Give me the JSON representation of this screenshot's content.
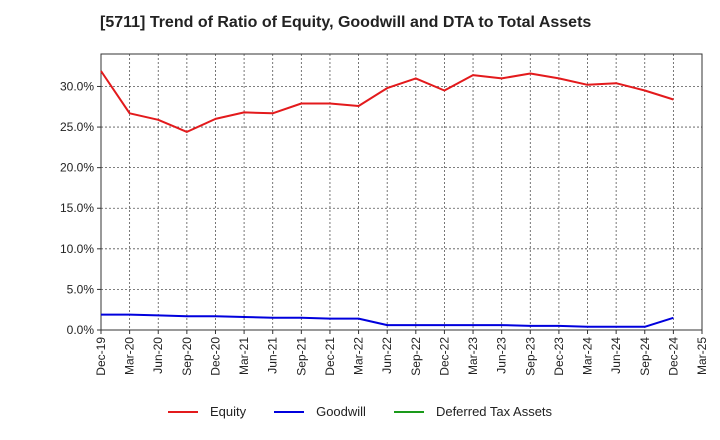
{
  "chart_data": {
    "type": "line",
    "title": "[5711]  Trend of Ratio of Equity, Goodwill and DTA to Total Assets",
    "xlabel": "",
    "ylabel": "",
    "x_ticks": [
      "Dec-19",
      "Mar-20",
      "Jun-20",
      "Sep-20",
      "Dec-20",
      "Mar-21",
      "Jun-21",
      "Sep-21",
      "Dec-21",
      "Mar-22",
      "Jun-22",
      "Sep-22",
      "Dec-22",
      "Mar-23",
      "Jun-23",
      "Sep-23",
      "Dec-23",
      "Mar-24",
      "Jun-24",
      "Sep-24",
      "Dec-24",
      "Mar-25"
    ],
    "y_ticks": [
      "0.0%",
      "5.0%",
      "10.0%",
      "15.0%",
      "20.0%",
      "25.0%",
      "30.0%"
    ],
    "y_tick_values": [
      0,
      5,
      10,
      15,
      20,
      25,
      30
    ],
    "ylim": [
      0,
      34
    ],
    "grid": true,
    "legend_position": "bottom",
    "series": [
      {
        "name": "Equity",
        "color": "#e31a1c",
        "x": [
          "Dec-19",
          "Mar-20",
          "Jun-20",
          "Sep-20",
          "Dec-20",
          "Mar-21",
          "Jun-21",
          "Sep-21",
          "Dec-21",
          "Mar-22",
          "Jun-22",
          "Sep-22",
          "Dec-22",
          "Mar-23",
          "Jun-23",
          "Sep-23",
          "Dec-23",
          "Mar-24",
          "Jun-24",
          "Sep-24",
          "Dec-24"
        ],
        "values": [
          31.9,
          26.7,
          25.9,
          24.4,
          26.0,
          26.8,
          26.7,
          27.9,
          27.9,
          27.6,
          29.8,
          31.0,
          29.5,
          31.4,
          31.0,
          31.6,
          31.0,
          30.2,
          30.4,
          29.5,
          28.4
        ]
      },
      {
        "name": "Goodwill",
        "color": "#0000dd",
        "x": [
          "Dec-19",
          "Mar-20",
          "Jun-20",
          "Sep-20",
          "Dec-20",
          "Mar-21",
          "Jun-21",
          "Sep-21",
          "Dec-21",
          "Mar-22",
          "Jun-22",
          "Sep-22",
          "Dec-22",
          "Mar-23",
          "Jun-23",
          "Sep-23",
          "Dec-23",
          "Mar-24",
          "Jun-24",
          "Sep-24",
          "Dec-24"
        ],
        "values": [
          1.9,
          1.9,
          1.8,
          1.7,
          1.7,
          1.6,
          1.5,
          1.5,
          1.4,
          1.4,
          0.6,
          0.6,
          0.6,
          0.6,
          0.6,
          0.5,
          0.5,
          0.4,
          0.4,
          0.4,
          1.5
        ]
      },
      {
        "name": "Deferred Tax Assets",
        "color": "#1a9a1a",
        "x": [],
        "values": []
      }
    ]
  }
}
